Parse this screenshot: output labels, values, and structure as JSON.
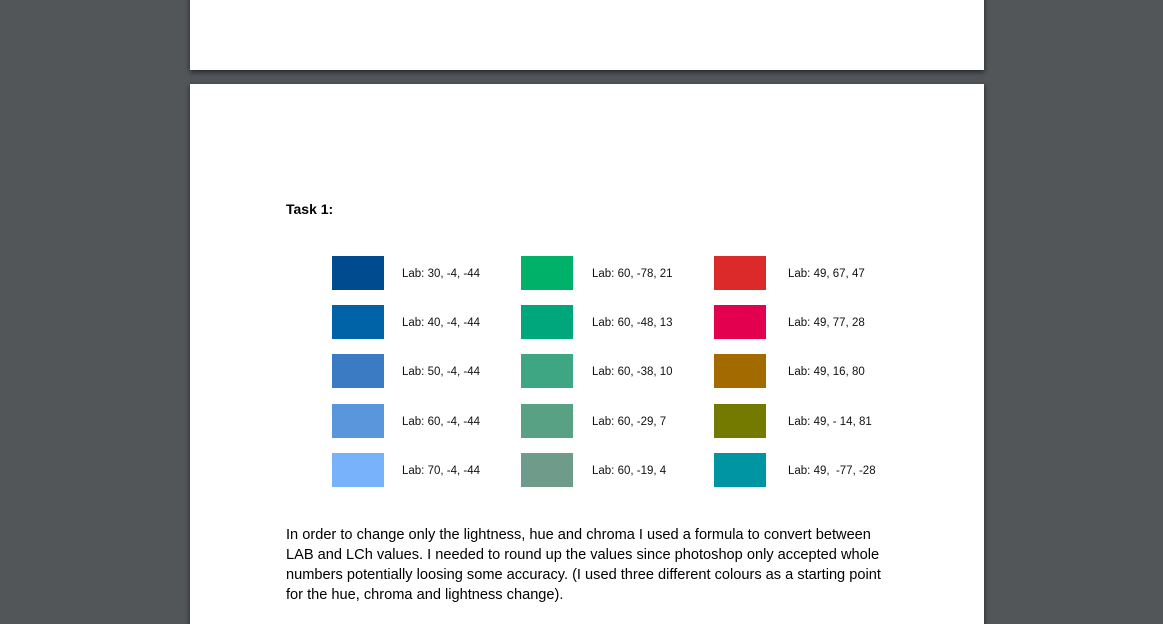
{
  "heading": "Task 1:",
  "swatches": [
    [
      {
        "label": "Lab: 30, -4, -44",
        "color": "#004a8f"
      },
      {
        "label": "Lab: 60, -78, 21",
        "color": "#00b16a"
      },
      {
        "label": "Lab: 49, 67, 47",
        "color": "#dc2a2a"
      }
    ],
    [
      {
        "label": "Lab: 40, -4, -44",
        "color": "#0063a8"
      },
      {
        "label": "Lab: 60, -48, 13",
        "color": "#00a77c"
      },
      {
        "label": "Lab: 49, 77, 28",
        "color": "#e2004f"
      }
    ],
    [
      {
        "label": "Lab: 50, -4, -44",
        "color": "#3a7bc3"
      },
      {
        "label": "Lab: 60, -38, 10",
        "color": "#3ea683"
      },
      {
        "label": "Lab: 49, 16, 80",
        "color": "#a36a00"
      }
    ],
    [
      {
        "label": "Lab: 60, -4, -44",
        "color": "#5a96dc"
      },
      {
        "label": "Lab: 60, -29, 7",
        "color": "#59a185"
      },
      {
        "label": "Lab: 49, - 14, 81",
        "color": "#747a00"
      }
    ],
    [
      {
        "label": "Lab: 70, -4, -44",
        "color": "#78b2fb"
      },
      {
        "label": "Lab: 60, -19, 4",
        "color": "#6e9b8a"
      },
      {
        "label": "Lab: 49,  -77, -28",
        "color": "#0095a3"
      }
    ]
  ],
  "paragraph": [
    "In order to change only the lightness, hue and chroma I used a formula to convert between",
    "LAB and LCh values. I needed to round up the values since photoshop only accepted whole",
    "numbers potentially loosing some accuracy. (I used three different colours as a starting point",
    "for the hue, chroma and lightness change)."
  ]
}
